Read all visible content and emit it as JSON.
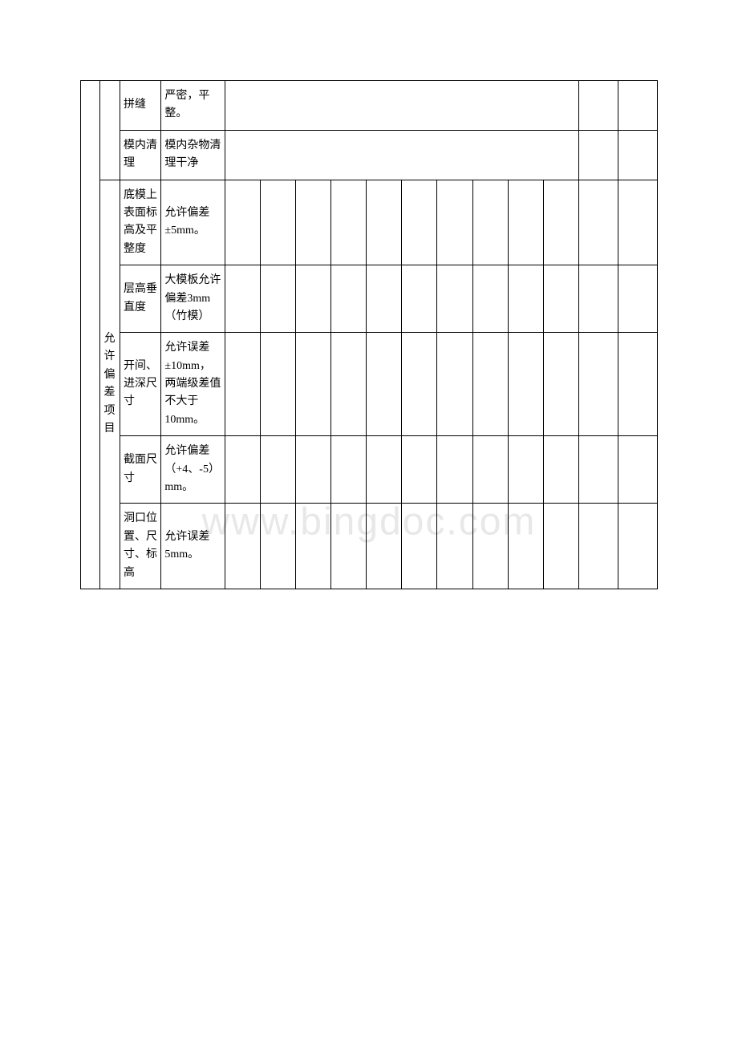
{
  "watermark": "www.bingdoc.com",
  "rows": [
    {
      "item": "拼缝",
      "spec": "严密，平整。"
    },
    {
      "item": "模内清理",
      "spec": "模内杂物清理干净"
    },
    {
      "category": "允许偏差项目",
      "item": "底模上表面标高及平整度",
      "spec": "允许偏差±5mm。"
    },
    {
      "item": "层高垂直度",
      "spec": "大模板允许偏差3mm（竹模）"
    },
    {
      "item": "开间、进深尺寸",
      "spec": "允许误差±10mm，两端级差值不大于10mm。"
    },
    {
      "item": "截面尺寸",
      "spec": "允许偏差（+4、-5）mm。"
    },
    {
      "item": "洞口位置、尺寸、标高",
      "spec": "允许误差5mm。"
    }
  ]
}
